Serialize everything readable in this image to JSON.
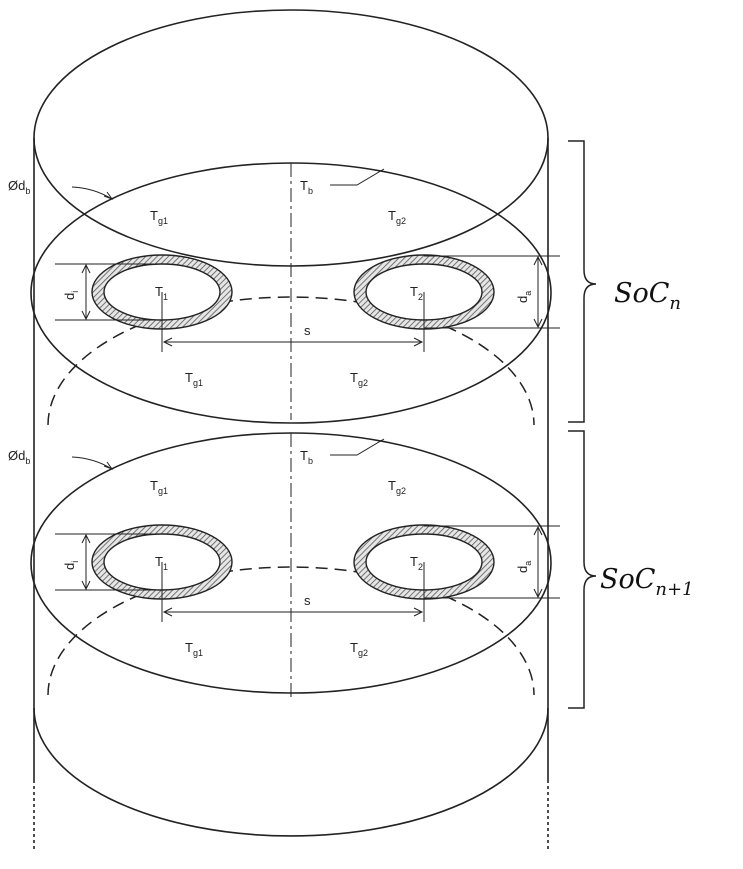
{
  "sections": [
    {
      "labels": {
        "diameter_db": {
          "main": "Ød",
          "sub": "b"
        },
        "tb": {
          "main": "T",
          "sub": "b"
        },
        "tg1_top": {
          "main": "T",
          "sub": "g1"
        },
        "tg2_top": {
          "main": "T",
          "sub": "g2"
        },
        "di": {
          "main": "d",
          "sub": "i"
        },
        "da": {
          "main": "d",
          "sub": "a"
        },
        "t1": {
          "main": "T",
          "sub": "1"
        },
        "t2": {
          "main": "T",
          "sub": "2"
        },
        "s": "s",
        "tg1_bottom": {
          "main": "T",
          "sub": "g1"
        },
        "tg2_bottom": {
          "main": "T",
          "sub": "g2"
        }
      },
      "soc": {
        "main": "SoC",
        "sub": "n"
      }
    },
    {
      "labels": {
        "diameter_db": {
          "main": "Ød",
          "sub": "b"
        },
        "tb": {
          "main": "T",
          "sub": "b"
        },
        "tg1_top": {
          "main": "T",
          "sub": "g1"
        },
        "tg2_top": {
          "main": "T",
          "sub": "g2"
        },
        "di": {
          "main": "d",
          "sub": "i"
        },
        "da": {
          "main": "d",
          "sub": "a"
        },
        "t1": {
          "main": "T",
          "sub": "1"
        },
        "t2": {
          "main": "T",
          "sub": "2"
        },
        "s": "s",
        "tg1_bottom": {
          "main": "T",
          "sub": "g1"
        },
        "tg2_bottom": {
          "main": "T",
          "sub": "g2"
        }
      },
      "soc": {
        "main": "SoC",
        "sub": "n+1"
      }
    }
  ]
}
